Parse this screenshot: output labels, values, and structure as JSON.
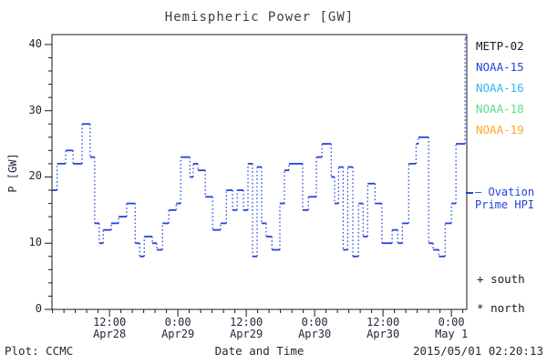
{
  "header": {
    "title": "Hemispheric Power [GW]"
  },
  "chart_data": {
    "type": "line",
    "style": "step-dotted-risers",
    "title": "Hemispheric Power [GW]",
    "xlabel": "Date and Time",
    "ylabel": "P [GW]",
    "ylim": [
      0,
      41.5
    ],
    "xlim_hours_from_apr28_0000": [
      1.9,
      74.7
    ],
    "grid": false,
    "yticks": [
      0,
      10,
      20,
      30,
      40
    ],
    "y_minor_step": 2,
    "x_minor_step_hours": 2,
    "xticks": [
      {
        "hour": 12,
        "time": "12:00",
        "date": "Apr28"
      },
      {
        "hour": 24,
        "time": "0:00",
        "date": "Apr29"
      },
      {
        "hour": 36,
        "time": "12:00",
        "date": "Apr29"
      },
      {
        "hour": 48,
        "time": "0:00",
        "date": "Apr30"
      },
      {
        "hour": 60,
        "time": "12:00",
        "date": "Apr30"
      },
      {
        "hour": 72,
        "time": "0:00",
        "date": "May 1"
      }
    ],
    "series": [
      {
        "name": "Ovation Prime HPI",
        "color": "#2243dd",
        "end_hour": 74.7,
        "steps": [
          [
            1.9,
            18
          ],
          [
            2.8,
            22
          ],
          [
            4.3,
            24
          ],
          [
            5.6,
            22
          ],
          [
            7.2,
            28
          ],
          [
            8.6,
            23
          ],
          [
            9.4,
            13
          ],
          [
            10.2,
            10
          ],
          [
            10.9,
            12
          ],
          [
            12.3,
            13
          ],
          [
            13.6,
            14
          ],
          [
            15.0,
            16
          ],
          [
            16.5,
            10
          ],
          [
            17.3,
            8
          ],
          [
            18.1,
            11
          ],
          [
            19.5,
            10
          ],
          [
            20.3,
            9
          ],
          [
            21.3,
            13
          ],
          [
            22.4,
            15
          ],
          [
            23.7,
            16
          ],
          [
            24.5,
            23
          ],
          [
            26.1,
            20
          ],
          [
            26.7,
            22
          ],
          [
            27.5,
            21
          ],
          [
            28.8,
            17
          ],
          [
            30.1,
            12
          ],
          [
            31.5,
            13
          ],
          [
            32.5,
            18
          ],
          [
            33.6,
            15
          ],
          [
            34.4,
            18
          ],
          [
            35.5,
            15
          ],
          [
            36.3,
            22
          ],
          [
            37.1,
            8
          ],
          [
            37.9,
            21.5
          ],
          [
            38.7,
            13
          ],
          [
            39.5,
            11
          ],
          [
            40.5,
            9
          ],
          [
            41.9,
            16
          ],
          [
            42.7,
            21
          ],
          [
            43.5,
            22
          ],
          [
            45.9,
            15
          ],
          [
            46.9,
            17
          ],
          [
            48.3,
            23
          ],
          [
            49.3,
            25
          ],
          [
            50.9,
            20
          ],
          [
            51.5,
            16
          ],
          [
            52.2,
            21.5
          ],
          [
            53.0,
            9
          ],
          [
            53.8,
            21.5
          ],
          [
            54.7,
            8
          ],
          [
            55.7,
            16
          ],
          [
            56.5,
            11
          ],
          [
            57.3,
            19
          ],
          [
            58.6,
            16
          ],
          [
            59.8,
            10
          ],
          [
            61.6,
            12
          ],
          [
            62.6,
            10
          ],
          [
            63.4,
            13
          ],
          [
            64.5,
            22
          ],
          [
            65.8,
            25
          ],
          [
            66.2,
            26
          ],
          [
            68.0,
            10
          ],
          [
            68.8,
            9
          ],
          [
            69.8,
            8
          ],
          [
            70.9,
            13
          ],
          [
            72.0,
            16
          ],
          [
            72.8,
            25
          ],
          [
            74.4,
            41
          ]
        ]
      }
    ]
  },
  "legend": {
    "satellites": [
      {
        "label": "METP-02",
        "color": "#1a1a1a"
      },
      {
        "label": "NOAA-15",
        "color": "#2243dd"
      },
      {
        "label": "NOAA-16",
        "color": "#33b5f0"
      },
      {
        "label": "NOAA-18",
        "color": "#5cdd8c"
      },
      {
        "label": "NOAA-19",
        "color": "#ffa525"
      }
    ],
    "ovation": {
      "key": "—",
      "line1": "Ovation",
      "line2": "Prime HPI",
      "color": "#2243dd"
    },
    "markers": [
      {
        "symbol": "+",
        "label": "south"
      },
      {
        "symbol": "*",
        "label": "north"
      }
    ]
  },
  "footer": {
    "left": "Plot: CCMC",
    "right": "2015/05/01 02:20:13"
  }
}
